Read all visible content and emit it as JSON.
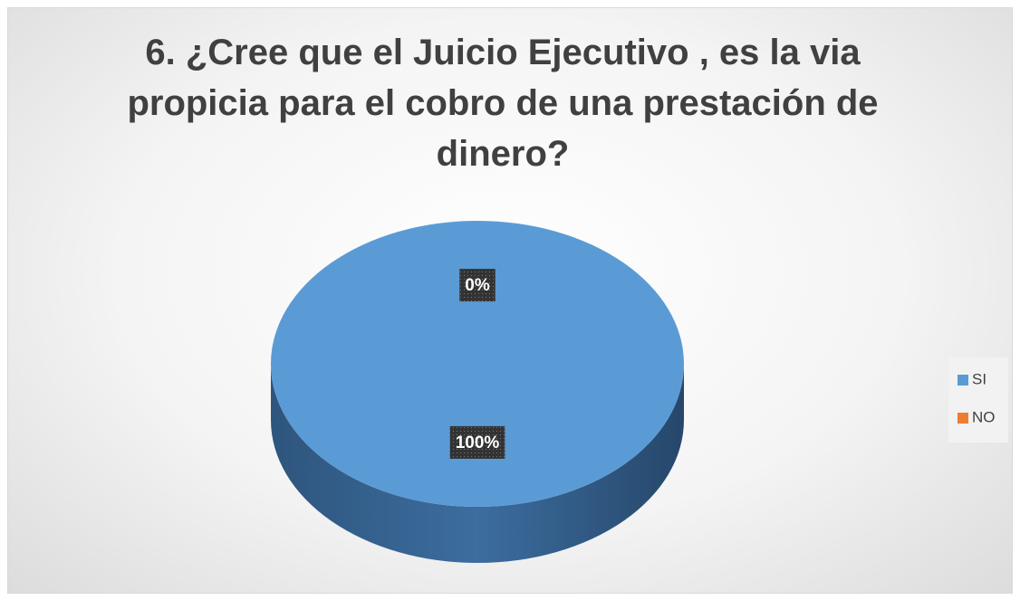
{
  "chart_data": {
    "type": "pie",
    "title": "6. ¿Cree que el Juicio Ejecutivo , es la via propicia para el cobro de una prestación de dinero?",
    "categories": [
      "SI",
      "NO"
    ],
    "values": [
      100,
      0
    ],
    "value_labels": [
      "100%",
      "0%"
    ],
    "colors": [
      "#5b9bd5",
      "#ed7d31"
    ],
    "legend": "right"
  }
}
